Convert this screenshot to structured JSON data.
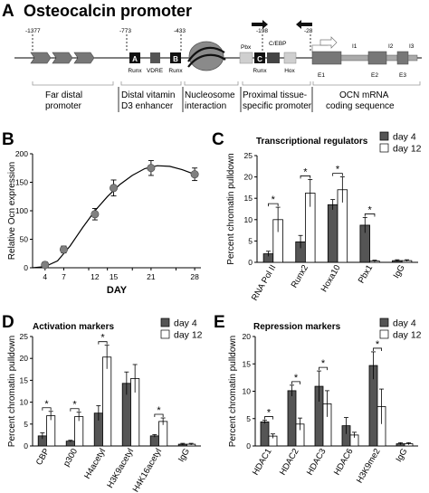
{
  "figure_title": "Osteocalcin promoter",
  "panels": {
    "A": "A",
    "B": "B",
    "C": "C",
    "D": "D",
    "E": "E"
  },
  "promoter_map": {
    "positions": [
      "-1377",
      "-773",
      "-433",
      "-198",
      "-28"
    ],
    "element_boxes": [
      "A",
      "B",
      "C"
    ],
    "element_labels": [
      "Runx",
      "VDRE",
      "Runx",
      "Pbx",
      "C/EBP",
      "Runx",
      "Hox"
    ],
    "exons": [
      "E1",
      "E2",
      "E3"
    ],
    "introns": [
      "I1",
      "I2",
      "I3"
    ],
    "regions": [
      {
        "line1": "Far distal",
        "line2": "promoter"
      },
      {
        "line1": "Distal vitamin",
        "line2": "D3 enhancer"
      },
      {
        "line1": "Nucleosome",
        "line2": "interaction"
      },
      {
        "line1": "Proximal tissue-",
        "line2": "specific promoter"
      },
      {
        "line1": "OCN mRNA",
        "line2": "coding sequence"
      }
    ]
  },
  "legend": {
    "series1": "day 4",
    "series2": "day 12"
  },
  "significance_marker": "*",
  "colors": {
    "day4": "#555555",
    "day12": "#ffffff",
    "line": "#000000",
    "point": "#808080"
  },
  "chart_data": [
    {
      "type": "line",
      "panel": "B",
      "xlabel": "DAY",
      "ylabel": "Relative Ocn expression",
      "x": [
        4,
        7,
        12,
        15,
        21,
        28
      ],
      "xlim": [
        2,
        29
      ],
      "xticks": [
        4,
        7,
        11,
        14,
        18,
        21,
        25,
        28
      ],
      "ylim": [
        0,
        200
      ],
      "yticks": [
        0,
        50,
        100,
        150,
        200
      ],
      "y": [
        5,
        32,
        94,
        140,
        175,
        164
      ],
      "error": [
        5,
        6,
        10,
        14,
        13,
        11
      ],
      "curve_x": [
        2,
        4,
        6,
        8,
        10,
        12,
        14,
        16,
        18,
        20,
        22,
        24,
        26,
        28
      ],
      "curve_y": [
        0,
        2,
        12,
        38,
        70,
        100,
        125,
        146,
        162,
        174,
        179,
        178,
        172,
        164
      ]
    },
    {
      "type": "bar",
      "panel": "C",
      "title": "Transcriptional regulators",
      "ylabel": "Percent chromatin pulldown",
      "categories": [
        "RNA Pol II",
        "Runx2",
        "Hoxa10",
        "Pbx1",
        "IgG"
      ],
      "ylim": [
        0,
        25
      ],
      "yticks": [
        0,
        5,
        10,
        15,
        20,
        25
      ],
      "series": [
        {
          "name": "day 4",
          "values": [
            2.0,
            4.8,
            13.5,
            8.7,
            0.4
          ],
          "error": [
            0.6,
            1.5,
            1.2,
            1.8,
            0.2
          ]
        },
        {
          "name": "day 12",
          "values": [
            10.0,
            16.2,
            17.0,
            0.3,
            0.4
          ],
          "error": [
            2.9,
            3.2,
            3.0,
            0.2,
            0.2
          ]
        }
      ],
      "significant": [
        0,
        1,
        2,
        3
      ]
    },
    {
      "type": "bar",
      "panel": "D",
      "title": "Activation markers",
      "ylabel": "Percent chromatin pulldown",
      "categories": [
        "CBP",
        "p300",
        "H4acetyl",
        "H3K9acetyl",
        "H4K16acetyl",
        "IgG"
      ],
      "ylim": [
        0,
        25
      ],
      "yticks": [
        0,
        5,
        10,
        15,
        20,
        25
      ],
      "series": [
        {
          "name": "day 4",
          "values": [
            2.3,
            1.1,
            7.5,
            14.3,
            2.3,
            0.4
          ],
          "error": [
            0.7,
            0.2,
            1.7,
            2.6,
            0.3,
            0.2
          ]
        },
        {
          "name": "day 12",
          "values": [
            6.9,
            6.7,
            20.3,
            15.4,
            5.6,
            0.4
          ],
          "error": [
            1.0,
            1.0,
            2.7,
            3.2,
            0.8,
            0.2
          ]
        }
      ],
      "significant": [
        0,
        1,
        2,
        4
      ]
    },
    {
      "type": "bar",
      "panel": "E",
      "title": "Repression markers",
      "ylabel": "Percent chromatin pulldown",
      "categories": [
        "HDAC1",
        "HDAC2",
        "HDAC3",
        "HDAC6",
        "H3K9me2",
        "IgG"
      ],
      "ylim": [
        0,
        20
      ],
      "yticks": [
        0,
        5,
        10,
        15,
        20
      ],
      "series": [
        {
          "name": "day 4",
          "values": [
            4.4,
            10.1,
            10.9,
            3.7,
            14.7,
            0.4
          ],
          "error": [
            0.3,
            1.0,
            2.8,
            1.5,
            2.5,
            0.2
          ]
        },
        {
          "name": "day 12",
          "values": [
            1.8,
            4.0,
            7.7,
            2.0,
            7.2,
            0.4
          ],
          "error": [
            0.4,
            1.1,
            2.4,
            0.5,
            3.2,
            0.2
          ]
        }
      ],
      "significant": [
        0,
        1,
        2,
        4
      ]
    }
  ]
}
